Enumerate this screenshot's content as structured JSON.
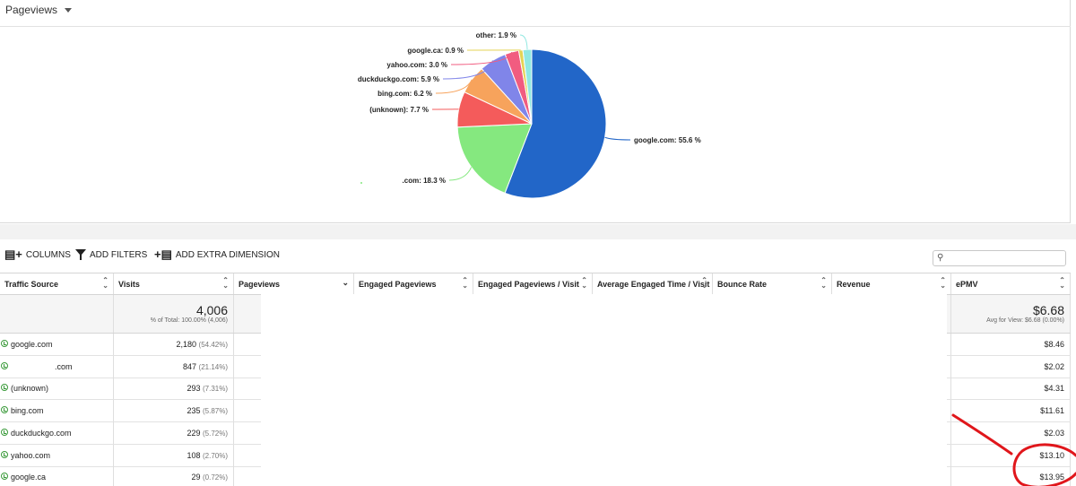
{
  "metric_selector": {
    "label": "Pageviews"
  },
  "chart_data": {
    "type": "pie",
    "slices": [
      {
        "label": "google.com",
        "percent": 55.6,
        "color": "#2266c8",
        "label_text": "google.com: 55.6 %"
      },
      {
        "label": ".com",
        "percent": 18.3,
        "color": "#85e87f",
        "label_text": ".com: 18.3 %"
      },
      {
        "label": "(unknown)",
        "percent": 7.7,
        "color": "#f45b5b",
        "label_text": "(unknown): 7.7 %"
      },
      {
        "label": "bing.com",
        "percent": 6.2,
        "color": "#f7a35c",
        "label_text": "bing.com: 6.2 %"
      },
      {
        "label": "duckduckgo.com",
        "percent": 5.9,
        "color": "#8085e9",
        "label_text": "duckduckgo.com: 5.9 %"
      },
      {
        "label": "yahoo.com",
        "percent": 3.0,
        "color": "#f15c80",
        "label_text": "yahoo.com: 3.0 %"
      },
      {
        "label": "google.ca",
        "percent": 0.9,
        "color": "#e4d354",
        "label_text": "google.ca: 0.9 %"
      },
      {
        "label": "other",
        "percent": 1.9,
        "color": "#91e8e1",
        "label_text": "other: 1.9 %"
      }
    ]
  },
  "toolbar": {
    "columns_label": "COLUMNS",
    "filters_label": "ADD FILTERS",
    "dimension_label": "ADD EXTRA DIMENSION",
    "search_placeholder": ""
  },
  "table": {
    "columns": [
      "Traffic Source",
      "Visits",
      "Pageviews",
      "Engaged Pageviews",
      "Engaged Pageviews / Visit",
      "Average Engaged Time / Visit",
      "Bounce Rate",
      "Revenue",
      "ePMV"
    ],
    "totals": {
      "visits": "4,006",
      "visits_sub": "% of Total: 100.00% (4,006)",
      "epmv": "$6.68",
      "epmv_sub": "Avg for View: $6.68 (0.00%)"
    },
    "rows": [
      {
        "source": "google.com",
        "visits": "2,180",
        "visits_pct": "(54.42%)",
        "epmv": "$8.46"
      },
      {
        "source": ".com",
        "visits": "847",
        "visits_pct": "(21.14%)",
        "epmv": "$2.02"
      },
      {
        "source": "(unknown)",
        "visits": "293",
        "visits_pct": "(7.31%)",
        "epmv": "$4.31"
      },
      {
        "source": "bing.com",
        "visits": "235",
        "visits_pct": "(5.87%)",
        "epmv": "$11.61"
      },
      {
        "source": "duckduckgo.com",
        "visits": "229",
        "visits_pct": "(5.72%)",
        "epmv": "$2.03"
      },
      {
        "source": "yahoo.com",
        "visits": "108",
        "visits_pct": "(2.70%)",
        "epmv": "$13.10"
      },
      {
        "source": "google.ca",
        "visits": "29",
        "visits_pct": "(0.72%)",
        "epmv": "$13.95"
      }
    ]
  },
  "colors": {
    "annotation": "#e0161b"
  }
}
